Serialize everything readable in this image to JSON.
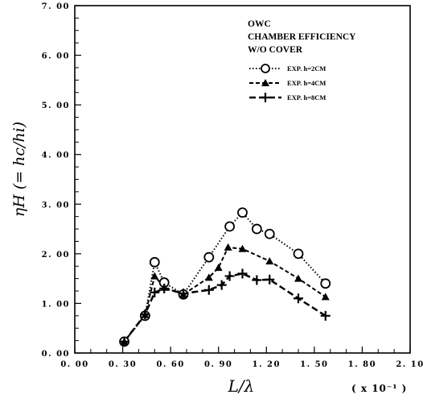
{
  "chart_data": {
    "type": "line",
    "title": "",
    "annotation_lines": [
      "OWC",
      "CHAMBER EFFICIENCY",
      "W/O COVER"
    ],
    "ylabel": "ηH (= hc/hi)",
    "xlabel": "L/λ",
    "x_unit": "( x 10⁻¹ )",
    "xlim": [
      0.0,
      2.1
    ],
    "ylim": [
      0.0,
      7.0
    ],
    "x_ticks": [
      "0. 00",
      "0. 30",
      "0. 60",
      "0. 90",
      "1. 20",
      "1. 50",
      "1. 80",
      "2. 10"
    ],
    "y_ticks": [
      "0. 00",
      "1. 00",
      "2. 00",
      "3. 00",
      "4. 00",
      "5. 00",
      "6. 00",
      "7. 00"
    ],
    "grid": false,
    "legend_position": "top-right",
    "series": [
      {
        "name": "EXP.  h=2CM",
        "marker": "circle",
        "line": "dotted",
        "points": [
          [
            0.31,
            0.23
          ],
          [
            0.44,
            0.75
          ],
          [
            0.5,
            1.83
          ],
          [
            0.56,
            1.42
          ],
          [
            0.68,
            1.18
          ],
          [
            0.84,
            1.93
          ],
          [
            0.97,
            2.55
          ],
          [
            1.05,
            2.83
          ],
          [
            1.14,
            2.5
          ],
          [
            1.22,
            2.4
          ],
          [
            1.4,
            2.0
          ],
          [
            1.57,
            1.4
          ]
        ]
      },
      {
        "name": "EXP.  h=4CM",
        "marker": "triangle",
        "line": "dashed",
        "points": [
          [
            0.31,
            0.23
          ],
          [
            0.44,
            0.77
          ],
          [
            0.5,
            1.55
          ],
          [
            0.56,
            1.32
          ],
          [
            0.68,
            1.18
          ],
          [
            0.84,
            1.52
          ],
          [
            0.9,
            1.72
          ],
          [
            0.96,
            2.13
          ],
          [
            1.05,
            2.1
          ],
          [
            1.22,
            1.85
          ],
          [
            1.4,
            1.5
          ],
          [
            1.57,
            1.13
          ]
        ]
      },
      {
        "name": "EXP.  h=8CM",
        "marker": "plus",
        "line": "long-dashed",
        "points": [
          [
            0.31,
            0.23
          ],
          [
            0.44,
            0.78
          ],
          [
            0.5,
            1.22
          ],
          [
            0.56,
            1.3
          ],
          [
            0.68,
            1.2
          ],
          [
            0.84,
            1.27
          ],
          [
            0.92,
            1.37
          ],
          [
            0.97,
            1.55
          ],
          [
            1.05,
            1.6
          ],
          [
            1.14,
            1.47
          ],
          [
            1.22,
            1.48
          ],
          [
            1.4,
            1.1
          ],
          [
            1.57,
            0.75
          ]
        ]
      }
    ]
  }
}
